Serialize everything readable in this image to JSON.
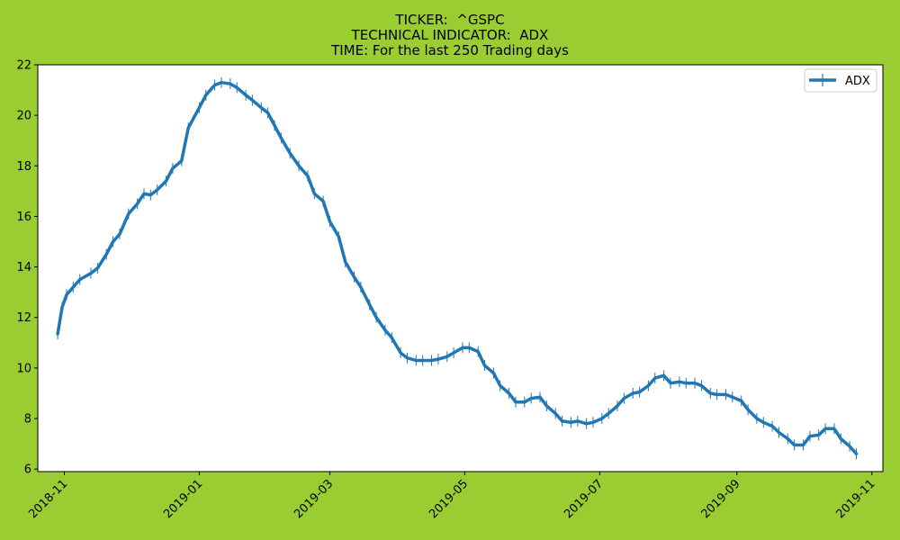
{
  "figure": {
    "background_color": "#9acd32",
    "title_lines": [
      "TICKER:  ^GSPC",
      "TECHNICAL INDICATOR:  ADX",
      "TIME: For the last 250 Trading days"
    ]
  },
  "chart_data": {
    "type": "line",
    "title": "TICKER:  ^GSPC\nTECHNICAL INDICATOR:  ADX\nTIME: For the last 250 Trading days",
    "xlabel": "",
    "ylabel": "",
    "x_type": "date",
    "xlim": [
      "2018-10-20",
      "2019-11-06"
    ],
    "ylim": [
      5.9,
      22.0
    ],
    "grid": false,
    "legend_position": "upper right",
    "x_ticks": [
      "2018-11",
      "2019-01",
      "2019-03",
      "2019-05",
      "2019-07",
      "2019-09",
      "2019-11"
    ],
    "x_tick_dates": [
      "2018-11-01",
      "2019-01-01",
      "2019-03-01",
      "2019-05-01",
      "2019-07-01",
      "2019-09-01",
      "2019-11-01"
    ],
    "y_ticks": [
      6,
      8,
      10,
      12,
      14,
      16,
      18,
      20,
      22
    ],
    "series": [
      {
        "name": "ADX",
        "color": "#1f77b4",
        "marker": "vertical line",
        "x": [
          "2018-10-29",
          "2018-10-31",
          "2018-11-02",
          "2018-11-05",
          "2018-11-08",
          "2018-11-13",
          "2018-11-16",
          "2018-11-20",
          "2018-11-23",
          "2018-11-26",
          "2018-11-30",
          "2018-12-04",
          "2018-12-07",
          "2018-12-10",
          "2018-12-13",
          "2018-12-17",
          "2018-12-20",
          "2018-12-24",
          "2018-12-27",
          "2019-01-01",
          "2019-01-04",
          "2019-01-08",
          "2019-01-11",
          "2019-01-15",
          "2019-01-18",
          "2019-01-22",
          "2019-01-25",
          "2019-01-29",
          "2019-02-01",
          "2019-02-04",
          "2019-02-07",
          "2019-02-11",
          "2019-02-15",
          "2019-02-19",
          "2019-02-22",
          "2019-02-26",
          "2019-03-01",
          "2019-03-05",
          "2019-03-08",
          "2019-03-12",
          "2019-03-15",
          "2019-03-19",
          "2019-03-22",
          "2019-03-26",
          "2019-03-29",
          "2019-04-02",
          "2019-04-05",
          "2019-04-09",
          "2019-04-12",
          "2019-04-16",
          "2019-04-19",
          "2019-04-23",
          "2019-04-26",
          "2019-04-30",
          "2019-05-03",
          "2019-05-07",
          "2019-05-10",
          "2019-05-14",
          "2019-05-17",
          "2019-05-21",
          "2019-05-24",
          "2019-05-28",
          "2019-05-31",
          "2019-06-04",
          "2019-06-07",
          "2019-06-11",
          "2019-06-14",
          "2019-06-18",
          "2019-06-21",
          "2019-06-25",
          "2019-06-28",
          "2019-07-02",
          "2019-07-05",
          "2019-07-09",
          "2019-07-12",
          "2019-07-16",
          "2019-07-19",
          "2019-07-23",
          "2019-07-26",
          "2019-07-30",
          "2019-08-02",
          "2019-08-06",
          "2019-08-09",
          "2019-08-13",
          "2019-08-16",
          "2019-08-20",
          "2019-08-23",
          "2019-08-27",
          "2019-08-30",
          "2019-09-03",
          "2019-09-06",
          "2019-09-10",
          "2019-09-13",
          "2019-09-17",
          "2019-09-20",
          "2019-09-24",
          "2019-09-27",
          "2019-10-01",
          "2019-10-04",
          "2019-10-08",
          "2019-10-11",
          "2019-10-15",
          "2019-10-18",
          "2019-10-22",
          "2019-10-25"
        ],
        "values": [
          11.35,
          12.4,
          12.9,
          13.2,
          13.5,
          13.75,
          13.95,
          14.5,
          15.0,
          15.3,
          16.1,
          16.5,
          16.9,
          16.85,
          17.05,
          17.4,
          17.9,
          18.2,
          19.5,
          20.3,
          20.8,
          21.2,
          21.3,
          21.25,
          21.1,
          20.8,
          20.6,
          20.3,
          20.1,
          19.6,
          19.1,
          18.5,
          18.0,
          17.6,
          16.9,
          16.6,
          15.8,
          15.2,
          14.2,
          13.6,
          13.2,
          12.5,
          12.0,
          11.5,
          11.2,
          10.6,
          10.4,
          10.3,
          10.3,
          10.3,
          10.35,
          10.45,
          10.6,
          10.8,
          10.8,
          10.65,
          10.1,
          9.8,
          9.3,
          9.0,
          8.65,
          8.65,
          8.8,
          8.85,
          8.5,
          8.2,
          7.9,
          7.85,
          7.9,
          7.8,
          7.85,
          8.0,
          8.2,
          8.5,
          8.8,
          9.0,
          9.05,
          9.3,
          9.6,
          9.7,
          9.4,
          9.45,
          9.4,
          9.4,
          9.3,
          9.0,
          8.95,
          8.95,
          8.85,
          8.7,
          8.35,
          8.0,
          7.85,
          7.7,
          7.45,
          7.2,
          6.95,
          6.95,
          7.3,
          7.35,
          7.6,
          7.6,
          7.2,
          6.9,
          6.6
        ]
      }
    ]
  }
}
